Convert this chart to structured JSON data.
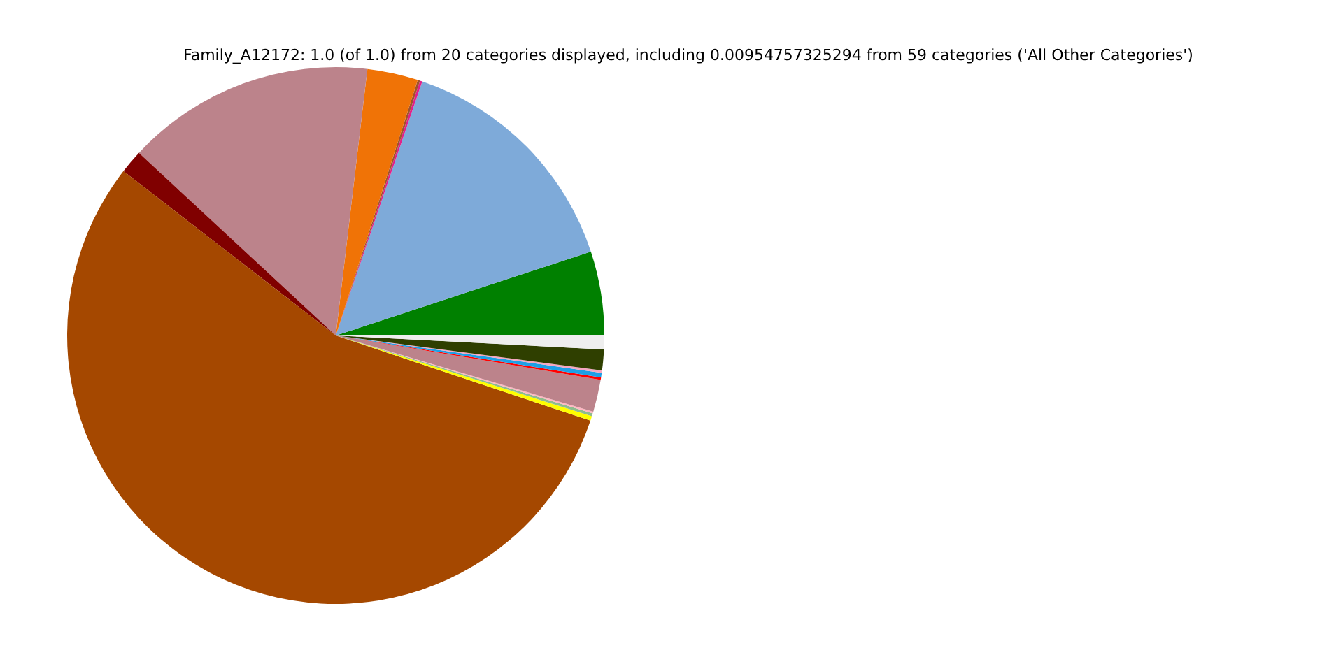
{
  "chart_data": {
    "type": "pie",
    "title": "Family_A12172: 1.0 (of 1.0) from 20 categories displayed, including 0.00954757325294 from 59 categories ('All Other Categories')",
    "categories": [
      null,
      null,
      null,
      null,
      null,
      null,
      null,
      null,
      null,
      null,
      null,
      null,
      null,
      null,
      null,
      null,
      null
    ],
    "values": [
      5.06,
      14.72,
      0.14,
      0.14,
      3.06,
      14.97,
      1.42,
      55.35,
      0.28,
      0.17,
      0.11,
      1.94,
      0.14,
      0.28,
      0.14,
      1.25,
      0.83
    ],
    "colors": [
      "#008000",
      "#7eaad9",
      "#e0218a",
      "#a0522d",
      "#f07306",
      "#bc838b",
      "#800000",
      "#a54800",
      "#ffff00",
      "#8fbc8f",
      "#ffb6c1",
      "#bc838b",
      "#ff0000",
      "#1ea0e6",
      "#f4a6c0",
      "#2f3f00",
      "#eeeeee"
    ]
  }
}
